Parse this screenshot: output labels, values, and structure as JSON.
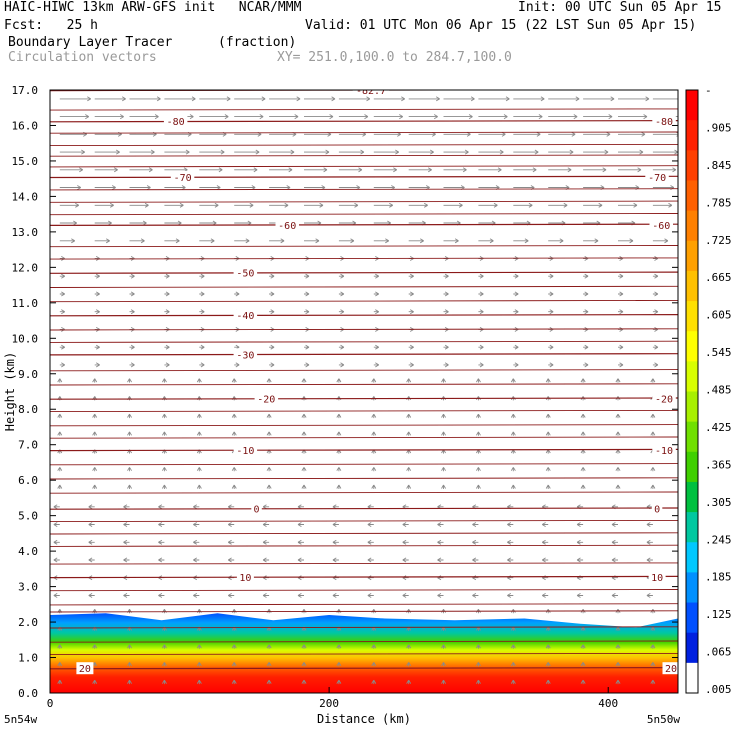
{
  "header": {
    "line1_left": "HAIC-HIWC 13km ARW-GFS init   NCAR/MMM",
    "line1_right": "Init: 00 UTC Sun 05 Apr 15",
    "line2_left": "Fcst:   25 h",
    "line2_right": "Valid: 01 UTC Mon 06 Apr 15 (22 LST Sun 05 Apr 15)",
    "field1_name": "Boundary Layer Tracer",
    "field1_units": "(fraction)",
    "field2_name": "Circulation vectors",
    "xsec_info": "XY= 251.0,100.0 to 284.7,100.0"
  },
  "chart_data": {
    "type": "heatmap",
    "title": "Boundary Layer Tracer",
    "xlabel": "Distance (km)",
    "ylabel": "Height (km)",
    "xlim": [
      0,
      450
    ],
    "ylim": [
      0,
      17
    ],
    "x_ticks": [
      {
        "value": 0,
        "label": "0"
      },
      {
        "value": 200,
        "label": "200"
      },
      {
        "value": 400,
        "label": "400"
      }
    ],
    "x_end_labels": {
      "left": "5n54w",
      "right": "5n50w"
    },
    "y_ticks": [
      {
        "value": 0,
        "label": "0.0"
      },
      {
        "value": 1,
        "label": "1.0"
      },
      {
        "value": 2,
        "label": "2.0"
      },
      {
        "value": 3,
        "label": "3.0"
      },
      {
        "value": 4,
        "label": "4.0"
      },
      {
        "value": 5,
        "label": "5.0"
      },
      {
        "value": 6,
        "label": "6.0"
      },
      {
        "value": 7,
        "label": "7.0"
      },
      {
        "value": 8,
        "label": "8.0"
      },
      {
        "value": 9,
        "label": "9.0"
      },
      {
        "value": 10,
        "label": "10.0"
      },
      {
        "value": 11,
        "label": "11.0"
      },
      {
        "value": 12,
        "label": "12.0"
      },
      {
        "value": 13,
        "label": "13.0"
      },
      {
        "value": 14,
        "label": "14.0"
      },
      {
        "value": 15,
        "label": "15.0"
      },
      {
        "value": 16,
        "label": "16.0"
      },
      {
        "value": 17,
        "label": "17.0"
      }
    ],
    "colorbar": {
      "labels": [
        "-",
        ".905",
        ".845",
        ".785",
        ".725",
        ".665",
        ".605",
        ".545",
        ".485",
        ".425",
        ".365",
        ".305",
        ".245",
        ".185",
        ".125",
        ".065",
        ".005"
      ],
      "colors": [
        "#ff0000",
        "#ff2000",
        "#ff4000",
        "#ff6000",
        "#ff8000",
        "#ffa000",
        "#ffc000",
        "#ffe000",
        "#ffff00",
        "#d8ff00",
        "#a8f000",
        "#70e000",
        "#40d000",
        "#00c040",
        "#00c8a0",
        "#00c8ff",
        "#0090ff",
        "#0050ff",
        "#0020e0",
        "#ffffff"
      ]
    },
    "contour_lines": [
      {
        "label": "-82.7",
        "height": 17.0,
        "label_x": [
          230
        ]
      },
      {
        "label": "-80",
        "height": 16.12,
        "label_x": [
          90,
          440
        ]
      },
      {
        "label": "-70",
        "height": 14.55,
        "label_x": [
          95,
          435
        ]
      },
      {
        "label": "-60",
        "height": 13.2,
        "label_x": [
          170,
          438
        ]
      },
      {
        "label": "-50",
        "height": 11.85,
        "label_x": [
          140
        ]
      },
      {
        "label": "-40",
        "height": 10.65,
        "label_x": [
          140
        ]
      },
      {
        "label": "-30",
        "height": 9.55,
        "label_x": [
          140
        ]
      },
      {
        "label": "-20",
        "height": 8.3,
        "label_x": [
          155,
          440
        ]
      },
      {
        "label": "-10",
        "height": 6.85,
        "label_x": [
          140,
          440
        ]
      },
      {
        "label": "0",
        "height": 5.2,
        "label_x": [
          148,
          435
        ]
      },
      {
        "label": "10",
        "height": 3.27,
        "label_x": [
          140,
          435
        ]
      },
      {
        "label": "20",
        "height": 0.7,
        "label_x": [
          25,
          445
        ]
      }
    ],
    "extra_contour_heights": [
      17.0,
      16.45,
      15.8,
      15.45,
      15.15,
      14.85,
      14.2,
      13.85,
      13.5,
      12.6,
      12.25,
      11.45,
      11.05,
      10.25,
      9.9,
      9.1,
      8.7,
      7.95,
      7.55,
      7.2,
      6.45,
      6.05,
      5.65,
      4.85,
      4.5,
      4.15,
      3.65,
      2.9,
      2.5,
      2.3,
      1.85,
      1.45,
      1.1
    ],
    "boundary_layer_top_km": [
      {
        "x": 0,
        "y": 2.2
      },
      {
        "x": 40,
        "y": 2.25
      },
      {
        "x": 80,
        "y": 2.05
      },
      {
        "x": 120,
        "y": 2.25
      },
      {
        "x": 160,
        "y": 2.05
      },
      {
        "x": 200,
        "y": 2.2
      },
      {
        "x": 240,
        "y": 2.1
      },
      {
        "x": 290,
        "y": 2.05
      },
      {
        "x": 340,
        "y": 2.1
      },
      {
        "x": 380,
        "y": 1.95
      },
      {
        "x": 420,
        "y": 1.85
      },
      {
        "x": 450,
        "y": 2.1
      }
    ]
  }
}
